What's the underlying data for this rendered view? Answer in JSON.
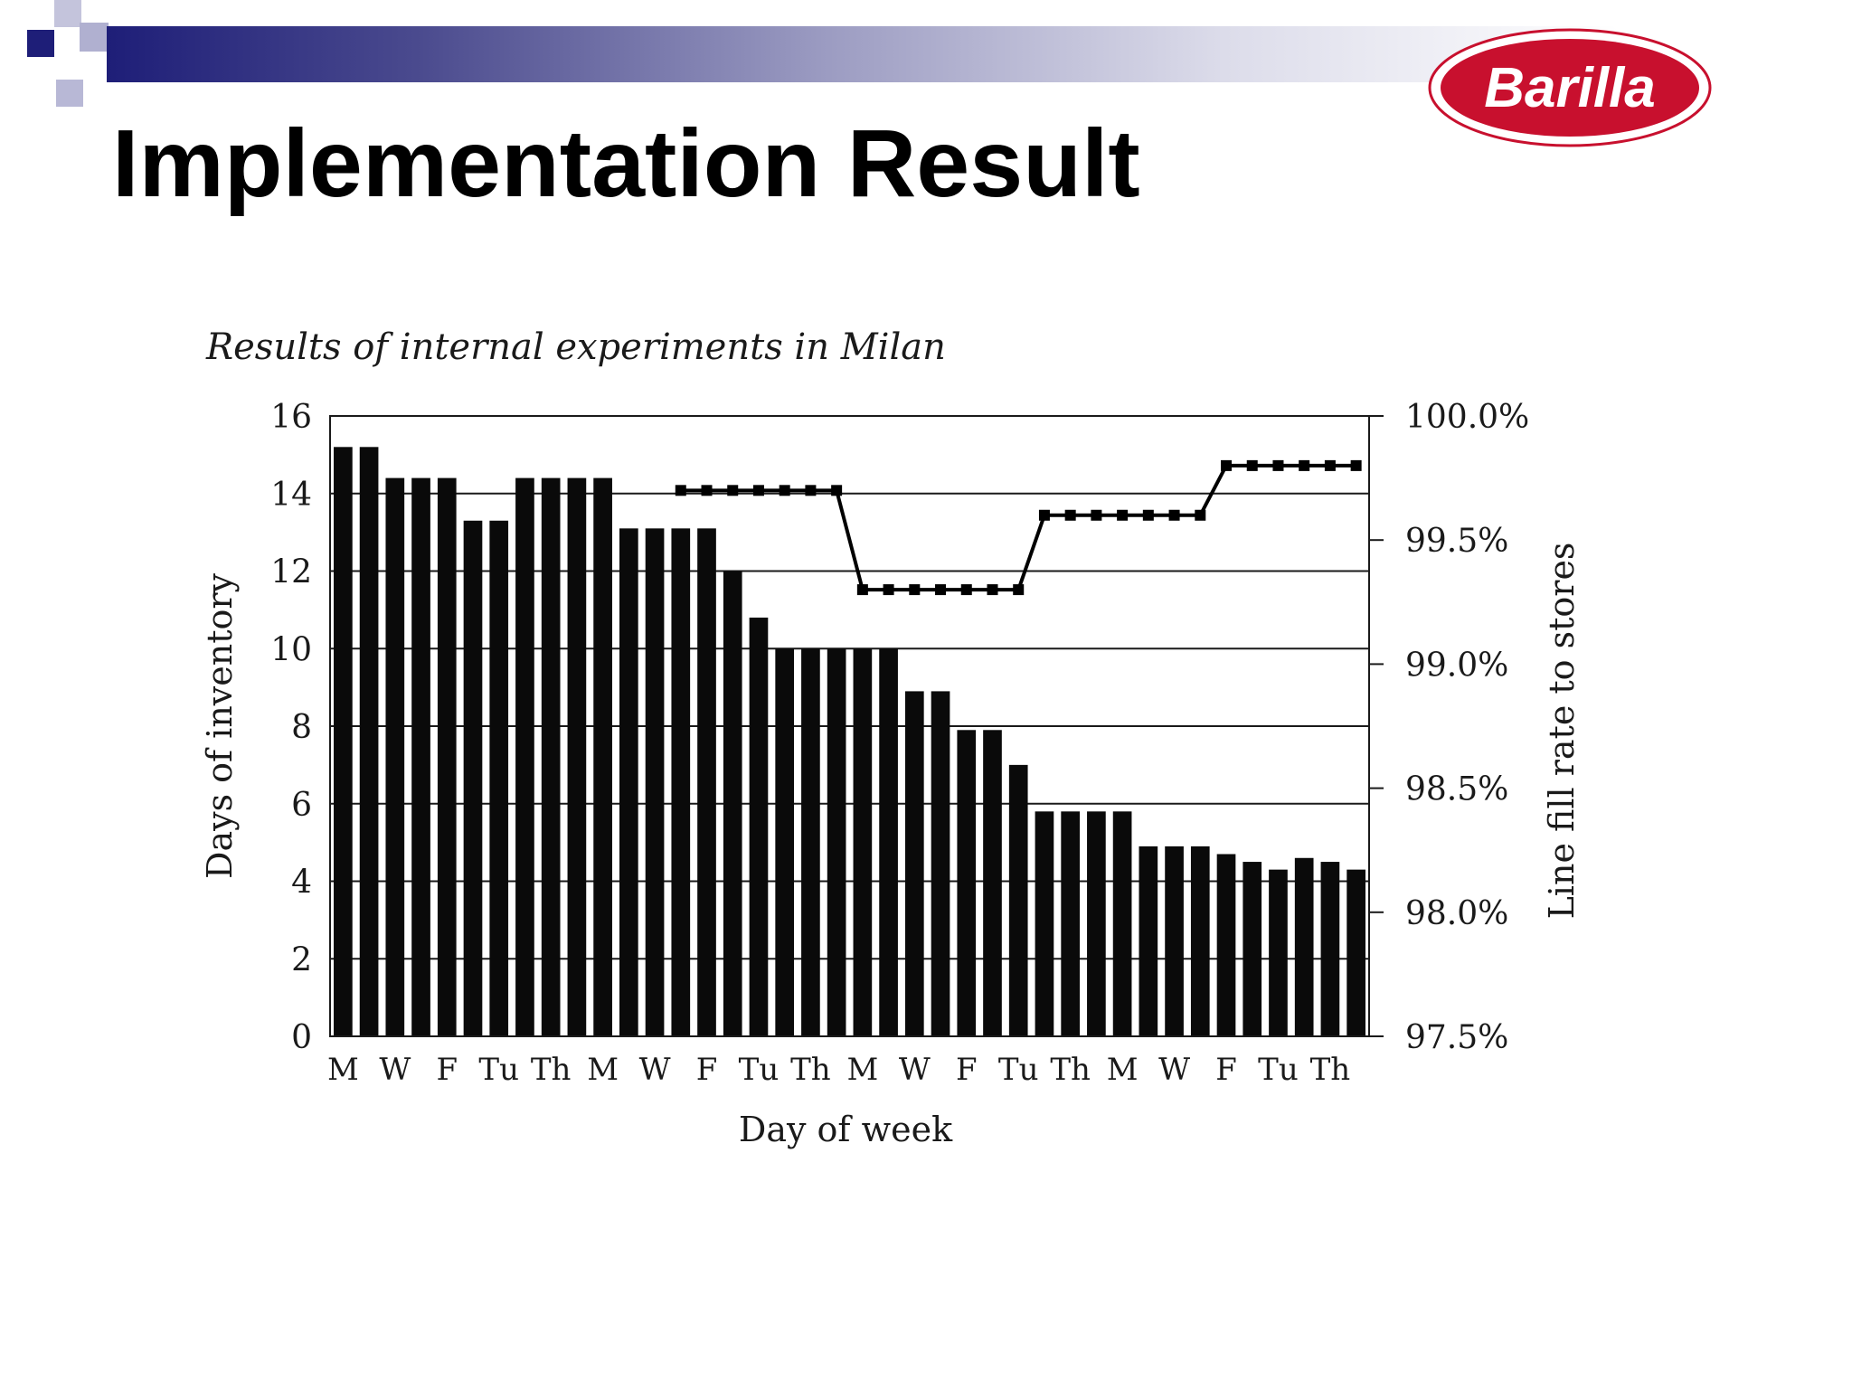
{
  "slide": {
    "title": "Implementation Result",
    "logo_text": "Barilla",
    "colors": {
      "header_dark": "#1e1e78",
      "header_light": "#9c9cc2",
      "logo_red": "#c8102e",
      "bar": "#0a0a0a"
    }
  },
  "chart_data": {
    "type": "bar",
    "title": "Results of internal experiments in Milan",
    "xlabel": "Day of week",
    "ylabel": "Days of inventory",
    "y2label": "Line fill rate to stores",
    "ylim": [
      0,
      16
    ],
    "y2lim": [
      97.5,
      100.0
    ],
    "yticks": [
      "0",
      "2",
      "4",
      "6",
      "8",
      "10",
      "12",
      "14",
      "16"
    ],
    "y2ticks": [
      "97.5%",
      "98.0%",
      "98.5%",
      "99.0%",
      "99.5%",
      "100.0%"
    ],
    "x_tick_labels": [
      "M",
      "W",
      "F",
      "Tu",
      "Th",
      "M",
      "W",
      "F",
      "Tu",
      "Th",
      "M",
      "W",
      "F",
      "Tu",
      "Th",
      "M",
      "W",
      "F",
      "Tu",
      "Th"
    ],
    "grid": true,
    "series": [
      {
        "type": "bar",
        "axis": "left",
        "values": [
          15.2,
          15.2,
          14.4,
          14.4,
          14.4,
          13.3,
          13.3,
          14.4,
          14.4,
          14.4,
          14.4,
          13.1,
          13.1,
          13.1,
          13.1,
          12.0,
          10.8,
          10.0,
          10.0,
          10.0,
          10.0,
          10.0,
          8.9,
          8.9,
          7.9,
          7.9,
          7.0,
          5.8,
          5.8,
          5.8,
          5.8,
          4.9,
          4.9,
          4.9,
          4.7,
          4.5,
          4.3,
          4.6,
          4.5,
          4.3
        ]
      },
      {
        "type": "line",
        "axis": "right",
        "values": [
          null,
          null,
          null,
          null,
          null,
          null,
          null,
          null,
          null,
          null,
          null,
          null,
          null,
          99.7,
          99.7,
          99.7,
          99.7,
          99.7,
          99.7,
          99.7,
          99.3,
          99.3,
          99.3,
          99.3,
          99.3,
          99.3,
          99.3,
          99.6,
          99.6,
          99.6,
          99.6,
          99.6,
          99.6,
          99.6,
          99.8,
          99.8,
          99.8,
          99.8,
          99.8,
          99.8
        ]
      }
    ]
  }
}
